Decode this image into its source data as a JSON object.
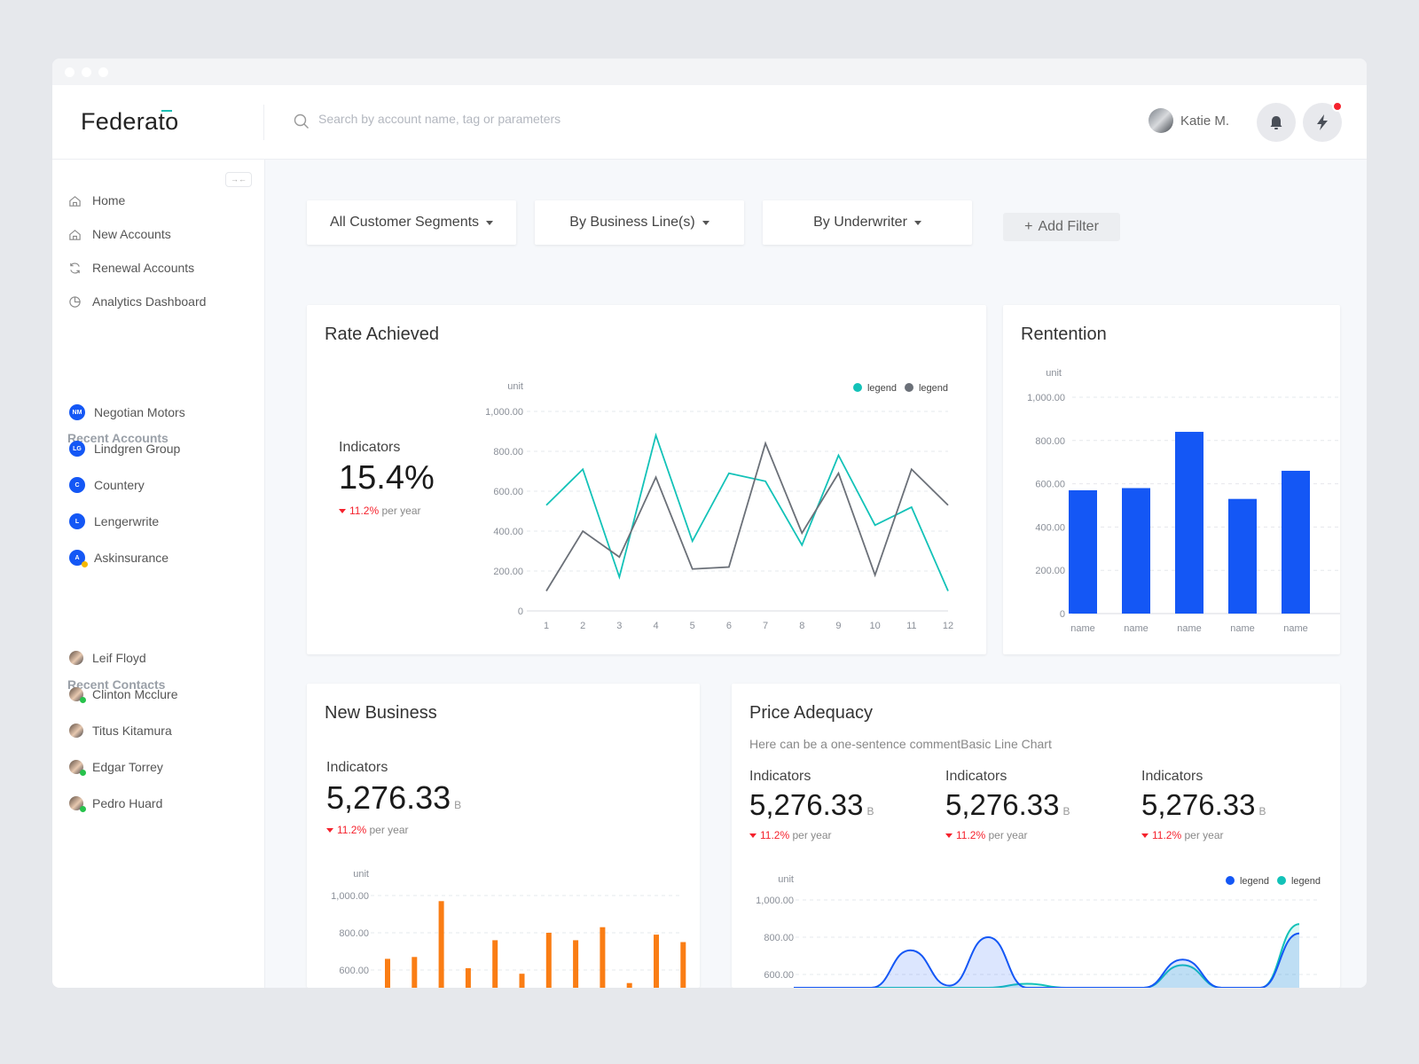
{
  "app": {
    "logo": "Federato",
    "search_placeholder": "Search by account name, tag or parameters",
    "user_name": "Katie M."
  },
  "sidebar": {
    "nav": [
      {
        "label": "Home",
        "icon": "home-icon"
      },
      {
        "label": "New Accounts",
        "icon": "home-icon"
      },
      {
        "label": "Renewal Accounts",
        "icon": "refresh-icon"
      },
      {
        "label": "Analytics Dashboard",
        "icon": "pie-chart-icon"
      }
    ],
    "recent_accounts_title": "Recent Accounts",
    "accounts": [
      {
        "initials": "NM",
        "name": "Negotian Motors"
      },
      {
        "initials": "LG",
        "name": "Lindgren Group"
      },
      {
        "initials": "C",
        "name": "Countery"
      },
      {
        "initials": "L",
        "name": "Lengerwrite"
      },
      {
        "initials": "A",
        "name": "Askinsurance",
        "status": "#f5b800"
      }
    ],
    "recent_contacts_title": "Recent Contacts",
    "contacts": [
      {
        "name": "Leif Floyd"
      },
      {
        "name": "Clinton Mcclure",
        "status": "#27c24c"
      },
      {
        "name": "Titus Kitamura"
      },
      {
        "name": "Edgar Torrey",
        "status": "#27c24c"
      },
      {
        "name": "Pedro Huard",
        "status": "#27c24c"
      }
    ]
  },
  "filters": [
    "All Customer Segments",
    "By Business Line(s)",
    "By Underwriter"
  ],
  "add_filter": "Add Filter",
  "colors": {
    "teal": "#13c2b8",
    "gray": "#6b7078",
    "blue": "#1457f5",
    "orange": "#fa7d14",
    "down": "#f5222d"
  },
  "rate": {
    "title": "Rate Achieved",
    "ind_label": "Indicators",
    "ind_value": "15.4%",
    "change": "11.2%",
    "change_suffix": "per year"
  },
  "retention": {
    "title": "Rentention"
  },
  "new_business": {
    "title": "New Business",
    "ind_label": "Indicators",
    "ind_value": "5,276.33",
    "unit": "B",
    "change": "11.2%",
    "change_suffix": "per year"
  },
  "price": {
    "title": "Price Adequacy",
    "subtitle": "Here can be a one-sentence commentBasic Line Chart",
    "indicators": [
      {
        "label": "Indicators",
        "value": "5,276.33",
        "unit": "B",
        "change": "11.2%",
        "suffix": "per year"
      },
      {
        "label": "Indicators",
        "value": "5,276.33",
        "unit": "B",
        "change": "11.2%",
        "suffix": "per year"
      },
      {
        "label": "Indicators",
        "value": "5,276.33",
        "unit": "B",
        "change": "11.2%",
        "suffix": "per year"
      }
    ]
  },
  "chart_data": [
    {
      "type": "line",
      "ylabel": "unit",
      "ylim": [
        0,
        1000
      ],
      "yticks": [
        "0",
        "200.00",
        "400.00",
        "600.00",
        "800.00",
        "1,000.00"
      ],
      "categories": [
        "1",
        "2",
        "3",
        "4",
        "5",
        "6",
        "7",
        "8",
        "9",
        "10",
        "11",
        "12"
      ],
      "legend": "top-right",
      "grid": true,
      "series": [
        {
          "name": "legend",
          "color": "#13c2b8",
          "values": [
            530,
            710,
            170,
            880,
            350,
            690,
            650,
            330,
            780,
            430,
            520,
            100
          ]
        },
        {
          "name": "legend",
          "color": "#6b7078",
          "values": [
            100,
            400,
            270,
            670,
            210,
            220,
            840,
            390,
            690,
            180,
            710,
            530
          ]
        }
      ]
    },
    {
      "type": "bar",
      "ylabel": "unit",
      "ylim": [
        0,
        1000
      ],
      "yticks": [
        "0",
        "200.00",
        "400.00",
        "600.00",
        "800.00",
        "1,000.00"
      ],
      "categories": [
        "name",
        "name",
        "name",
        "name",
        "name"
      ],
      "grid": true,
      "color": "#1457f5",
      "values": [
        570,
        580,
        840,
        530,
        660
      ]
    },
    {
      "type": "bar",
      "ylabel": "unit",
      "ylim": [
        0,
        1000
      ],
      "yticks": [
        "600.00",
        "800.00",
        "1,000.00"
      ],
      "grid": true,
      "color": "#fa7d14",
      "values": [
        660,
        670,
        970,
        610,
        760,
        580,
        800,
        760,
        830,
        530,
        790,
        750
      ]
    },
    {
      "type": "area",
      "ylabel": "unit",
      "ylim": [
        0,
        1000
      ],
      "yticks": [
        "600.00",
        "800.00",
        "1,000.00"
      ],
      "legend": "top-right",
      "grid": true,
      "series": [
        {
          "name": "legend",
          "color": "#1457f5",
          "values": [
            300,
            350,
            420,
            730,
            540,
            800,
            420,
            520,
            480,
            350,
            680,
            300,
            360,
            820
          ]
        },
        {
          "name": "legend",
          "color": "#13c2b8",
          "values": [
            250,
            300,
            350,
            420,
            380,
            450,
            550,
            500,
            420,
            300,
            650,
            320,
            300,
            870
          ]
        }
      ]
    }
  ]
}
